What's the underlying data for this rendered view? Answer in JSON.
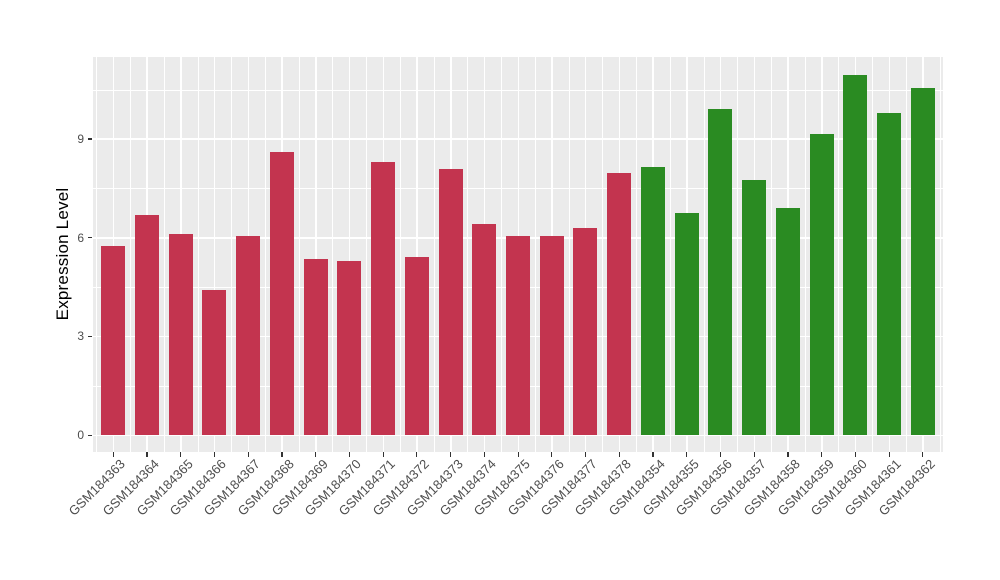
{
  "chart_data": {
    "type": "bar",
    "title": "",
    "xlabel": "",
    "ylabel": "Expression Level",
    "categories": [
      "GSM184363",
      "GSM184364",
      "GSM184365",
      "GSM184366",
      "GSM184367",
      "GSM184368",
      "GSM184369",
      "GSM184370",
      "GSM184371",
      "GSM184372",
      "GSM184373",
      "GSM184374",
      "GSM184375",
      "GSM184376",
      "GSM184377",
      "GSM184378",
      "GSM184354",
      "GSM184355",
      "GSM184356",
      "GSM184357",
      "GSM184358",
      "GSM184359",
      "GSM184360",
      "GSM184361",
      "GSM184362"
    ],
    "values": [
      5.75,
      6.7,
      6.1,
      4.4,
      6.05,
      8.6,
      5.35,
      5.3,
      8.3,
      5.4,
      8.1,
      6.4,
      6.05,
      6.05,
      6.3,
      7.95,
      8.15,
      6.75,
      9.9,
      7.75,
      6.9,
      9.15,
      10.95,
      9.8,
      10.55
    ],
    "group_index": [
      0,
      0,
      0,
      0,
      0,
      0,
      0,
      0,
      0,
      0,
      0,
      0,
      0,
      0,
      0,
      0,
      1,
      1,
      1,
      1,
      1,
      1,
      1,
      1,
      1
    ],
    "group_colors": [
      "#C3344F",
      "#2A8B22"
    ],
    "yticks": [
      0,
      3,
      6,
      9
    ],
    "yticks_minor": [
      1.5,
      4.5,
      7.5,
      10.5
    ],
    "ylim": [
      -0.5,
      11.5
    ],
    "bar_width_ratio": 0.7,
    "grid": true,
    "legend": "none",
    "panel_bg": "#EBEBEB",
    "grid_color": "#FFFFFF",
    "tick_color": "#333333",
    "axis_text_color": "#4D4D4D"
  }
}
